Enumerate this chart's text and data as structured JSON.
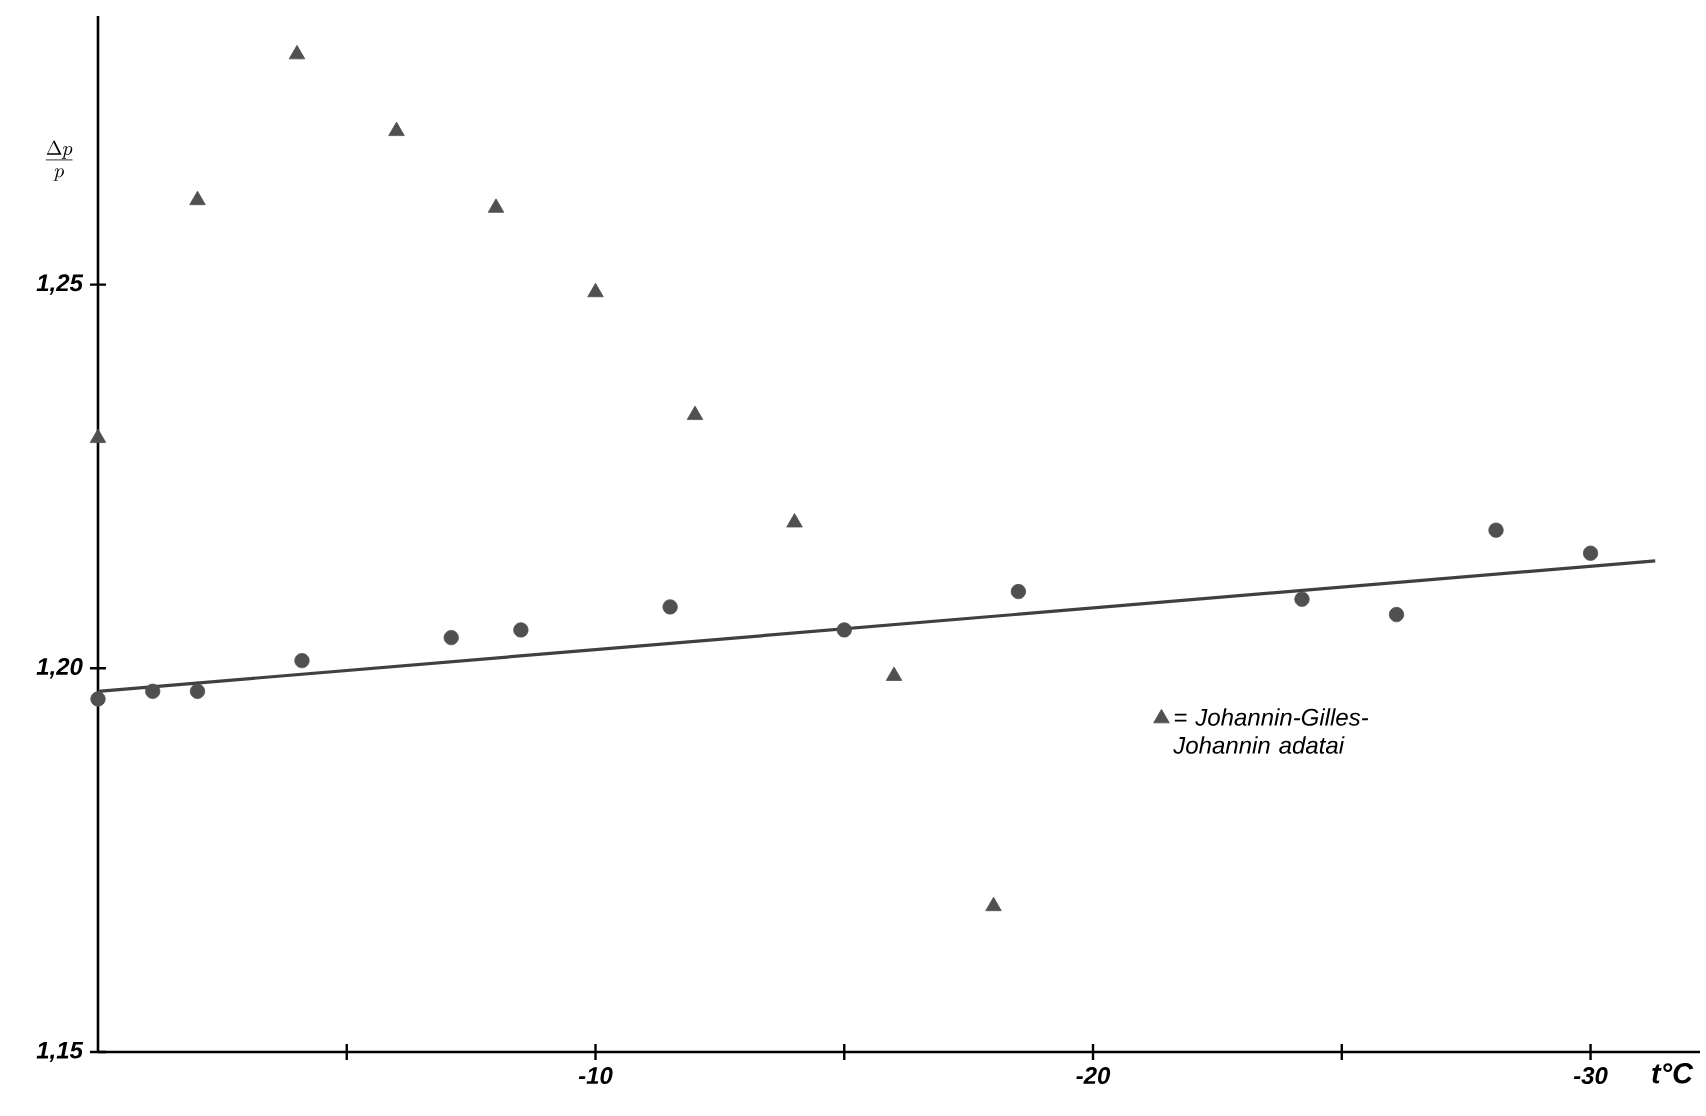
{
  "chart_data": {
    "type": "scatter",
    "xlabel": "t°C",
    "ylabel": "\\frac{\\Delta p}{p}",
    "xlim": [
      0,
      -32.2
    ],
    "ylim": [
      1.15,
      1.285
    ],
    "xticks": [
      {
        "value": -5,
        "label": null
      },
      -10,
      {
        "value": -15,
        "label": null
      },
      -20,
      {
        "value": -25,
        "label": null
      },
      -30
    ],
    "yticks": [
      {
        "value": 1.15,
        "label": "1,15"
      },
      {
        "value": 1.2,
        "label": "1,20"
      },
      {
        "value": 1.25,
        "label": "1,25"
      }
    ],
    "legend": "right",
    "grid": false,
    "series": [
      {
        "name": "= Johannin-Gilles-Johannin adatai",
        "marker": "triangle",
        "color": "#505050",
        "x": [
          0,
          -2,
          -4,
          -6,
          -8,
          -10,
          -12,
          -14,
          -16,
          -18
        ],
        "values": [
          1.23,
          1.261,
          1.28,
          1.27,
          1.26,
          1.249,
          1.233,
          1.219,
          1.199,
          1.169
        ]
      },
      {
        "marker": "circle",
        "color": "#505050",
        "x": [
          0,
          -1.1,
          -2,
          -4.1,
          -7.1,
          -8.5,
          -11.5,
          -15,
          -18.5,
          -24.2,
          -26.1,
          -28.1,
          -30
        ],
        "values": [
          1.196,
          1.197,
          1.197,
          1.201,
          1.204,
          1.205,
          1.208,
          1.205,
          1.21,
          1.209,
          1.207,
          1.218,
          1.215
        ]
      },
      {
        "type": "line",
        "marker": "none",
        "line_style": "solid",
        "color": "#404040",
        "x": [
          0,
          -31.3
        ],
        "values": [
          1.197,
          1.214
        ]
      }
    ]
  }
}
